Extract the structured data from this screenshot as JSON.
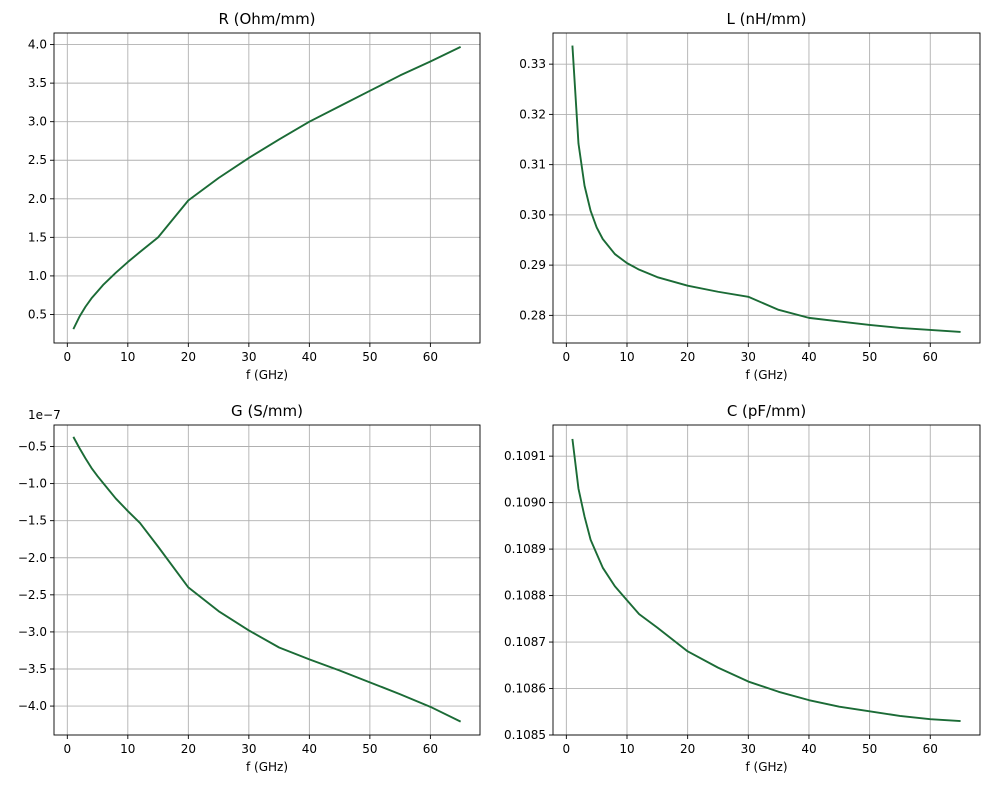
{
  "colors": {
    "line": "#1b6b36",
    "grid": "#b0b0b0",
    "frame": "#000000"
  },
  "chart_data": [
    {
      "type": "line",
      "title": "R (Ohm/mm)",
      "xlabel": "f (GHz)",
      "ylabel": "",
      "grid": true,
      "xlim": [
        -2.2,
        68.2
      ],
      "ylim": [
        0.13,
        4.15
      ],
      "xticks": [
        0,
        10,
        20,
        30,
        40,
        50,
        60
      ],
      "xtick_labels": [
        "0",
        "10",
        "20",
        "30",
        "40",
        "50",
        "60"
      ],
      "yticks": [
        0.5,
        1.0,
        1.5,
        2.0,
        2.5,
        3.0,
        3.5,
        4.0
      ],
      "ytick_labels": [
        "0.5",
        "1.0",
        "1.5",
        "2.0",
        "2.5",
        "3.0",
        "3.5",
        "4.0"
      ],
      "offset_text": "",
      "series": [
        {
          "x": [
            1,
            2,
            3,
            4,
            5,
            6,
            8,
            10,
            12,
            15,
            20,
            25,
            30,
            35,
            40,
            45,
            50,
            55,
            60,
            65
          ],
          "y": [
            0.31,
            0.47,
            0.6,
            0.71,
            0.8,
            0.89,
            1.04,
            1.18,
            1.31,
            1.5,
            1.98,
            2.27,
            2.53,
            2.77,
            3.0,
            3.2,
            3.4,
            3.6,
            3.78,
            3.97
          ]
        }
      ]
    },
    {
      "type": "line",
      "title": "L (nH/mm)",
      "xlabel": "f (GHz)",
      "ylabel": "",
      "grid": true,
      "xlim": [
        -2.2,
        68.2
      ],
      "ylim": [
        0.2745,
        0.3362
      ],
      "xticks": [
        0,
        10,
        20,
        30,
        40,
        50,
        60
      ],
      "xtick_labels": [
        "0",
        "10",
        "20",
        "30",
        "40",
        "50",
        "60"
      ],
      "yticks": [
        0.28,
        0.29,
        0.3,
        0.31,
        0.32,
        0.33
      ],
      "ytick_labels": [
        "0.28",
        "0.29",
        "0.30",
        "0.31",
        "0.32",
        "0.33"
      ],
      "offset_text": "",
      "series": [
        {
          "x": [
            1,
            2,
            3,
            4,
            5,
            6,
            8,
            10,
            12,
            15,
            20,
            25,
            30,
            35,
            40,
            45,
            50,
            55,
            60,
            65
          ],
          "y": [
            0.3337,
            0.3142,
            0.3058,
            0.3008,
            0.2975,
            0.2952,
            0.2922,
            0.2904,
            0.2891,
            0.2876,
            0.2859,
            0.2847,
            0.2837,
            0.2811,
            0.2795,
            0.2788,
            0.2781,
            0.2775,
            0.2771,
            0.2767
          ]
        }
      ]
    },
    {
      "type": "line",
      "title": "G (S/mm)",
      "xlabel": "f (GHz)",
      "ylabel": "",
      "grid": true,
      "xlim": [
        -2.2,
        68.2
      ],
      "ylim": [
        -4.39e-07,
        -2.1e-08
      ],
      "xticks": [
        0,
        10,
        20,
        30,
        40,
        50,
        60
      ],
      "xtick_labels": [
        "0",
        "10",
        "20",
        "30",
        "40",
        "50",
        "60"
      ],
      "yticks": [
        -4e-07,
        -3.5e-07,
        -3e-07,
        -2.5e-07,
        -2e-07,
        -1.5e-07,
        -1e-07,
        -5e-08
      ],
      "ytick_labels": [
        "−4.0",
        "−3.5",
        "−3.0",
        "−2.5",
        "−2.0",
        "−1.5",
        "−1.0",
        "−0.5"
      ],
      "offset_text": "1e−7",
      "series": [
        {
          "x": [
            1,
            2,
            3,
            4,
            5,
            6,
            8,
            10,
            12,
            15,
            20,
            25,
            30,
            35,
            40,
            45,
            50,
            55,
            60,
            65
          ],
          "y": [
            -3.7e-08,
            -5.2e-08,
            -6.6e-08,
            -7.9e-08,
            -9e-08,
            -1e-07,
            -1.2e-07,
            -1.37e-07,
            -1.53e-07,
            -1.85e-07,
            -2.4e-07,
            -2.72e-07,
            -2.98e-07,
            -3.21e-07,
            -3.37e-07,
            -3.52e-07,
            -3.68e-07,
            -3.84e-07,
            -4.01e-07,
            -4.21e-07
          ]
        }
      ]
    },
    {
      "type": "line",
      "title": "C (pF/mm)",
      "xlabel": "f (GHz)",
      "ylabel": "",
      "grid": true,
      "xlim": [
        -2.2,
        68.2
      ],
      "ylim": [
        0.1085,
        0.109167
      ],
      "xticks": [
        0,
        10,
        20,
        30,
        40,
        50,
        60
      ],
      "xtick_labels": [
        "0",
        "10",
        "20",
        "30",
        "40",
        "50",
        "60"
      ],
      "yticks": [
        0.1085,
        0.1086,
        0.1087,
        0.1088,
        0.1089,
        0.109,
        0.1091
      ],
      "ytick_labels": [
        "0.1085",
        "0.1086",
        "0.1087",
        "0.1088",
        "0.1089",
        "0.1090",
        "0.1091"
      ],
      "offset_text": "",
      "series": [
        {
          "x": [
            1,
            2,
            3,
            4,
            5,
            6,
            8,
            10,
            12,
            15,
            20,
            25,
            30,
            35,
            40,
            45,
            50,
            55,
            60,
            65
          ],
          "y": [
            0.109137,
            0.10903,
            0.10897,
            0.10892,
            0.10889,
            0.10886,
            0.10882,
            0.10879,
            0.10876,
            0.108731,
            0.10868,
            0.108645,
            0.108615,
            0.108593,
            0.108575,
            0.108561,
            0.108551,
            0.108541,
            0.108534,
            0.10853
          ]
        }
      ]
    }
  ]
}
